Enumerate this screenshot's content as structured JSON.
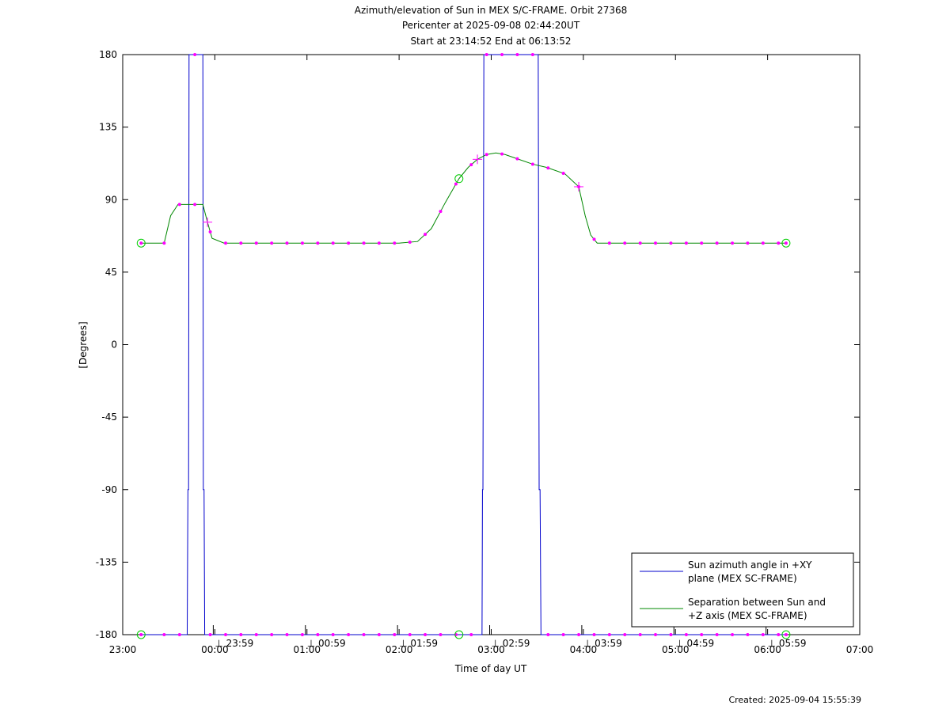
{
  "chart_data": {
    "type": "line",
    "title": [
      "Azimuth/elevation of Sun in MEX S/C-FRAME.  Orbit 27368",
      "Pericenter at 2025-09-08 02:44:20UT",
      "Start at 23:14:52 End at 06:13:52"
    ],
    "xlabel": "Time of day UT",
    "ylabel": "[Degrees]",
    "xlim": [
      0,
      8
    ],
    "ylim": [
      -180,
      180
    ],
    "x_ticks": [
      {
        "x": 0,
        "label": "23:00"
      },
      {
        "x": 1,
        "label": "00:00"
      },
      {
        "x": 2,
        "label": "01:00"
      },
      {
        "x": 3,
        "label": "02:00"
      },
      {
        "x": 4,
        "label": "03:00"
      },
      {
        "x": 5,
        "label": "04:00"
      },
      {
        "x": 6,
        "label": "05:00"
      },
      {
        "x": 7,
        "label": "06:00"
      },
      {
        "x": 8,
        "label": "07:00"
      }
    ],
    "y_ticks": [
      180,
      135,
      90,
      45,
      0,
      -45,
      -90,
      -135,
      -180
    ],
    "minor_labels": [
      {
        "x": 0.983,
        "label": "23:59"
      },
      {
        "x": 1.983,
        "label": "00:59"
      },
      {
        "x": 2.983,
        "label": "01:59"
      },
      {
        "x": 3.983,
        "label": "02:59"
      },
      {
        "x": 4.983,
        "label": "03:59"
      },
      {
        "x": 5.983,
        "label": "04:59"
      },
      {
        "x": 6.983,
        "label": "05:59"
      }
    ],
    "legend": {
      "position": "bottom-right",
      "entries": [
        {
          "line1": "Sun azimuth angle in +XY",
          "line2": "plane (MEX SC-FRAME)",
          "color": "#0000cc"
        },
        {
          "line1": "Separation between Sun and",
          "line2": "+Z axis (MEX SC-FRAME)",
          "color": "#008800"
        }
      ]
    },
    "series": [
      {
        "name": "Sun azimuth angle in +XY plane (MEX SC-FRAME)",
        "color": "#0000cc",
        "x": [
          0.2,
          0.7,
          0.708,
          0.715,
          0.72,
          0.73,
          0.86,
          0.87,
          0.875,
          0.883,
          0.89,
          0.9,
          1.0,
          3.9,
          3.905,
          3.91,
          3.92,
          3.93,
          4.5,
          4.51,
          4.52,
          4.53,
          4.54,
          7.2
        ],
        "values": [
          -180,
          -180,
          -90,
          -90,
          180,
          180,
          180,
          180,
          -90,
          -90,
          -180,
          -180,
          -180,
          -180,
          -90,
          -90,
          180,
          180,
          180,
          180,
          -90,
          -90,
          -180,
          -180
        ]
      },
      {
        "name": "Separation between Sun and +Z axis (MEX SC-FRAME)",
        "color": "#008800",
        "x": [
          0.2,
          0.45,
          0.52,
          0.6,
          0.87,
          0.92,
          0.97,
          1.1,
          2.0,
          3.0,
          3.2,
          3.35,
          3.5,
          3.65,
          3.75,
          3.85,
          3.95,
          4.05,
          4.15,
          4.3,
          4.45,
          4.6,
          4.8,
          4.95,
          5.02,
          5.08,
          5.15,
          5.3,
          6.0,
          7.2
        ],
        "values": [
          63,
          63,
          80,
          87,
          87,
          76,
          66,
          63,
          63,
          63,
          64,
          72,
          88,
          103,
          110,
          115,
          118,
          119,
          118,
          115,
          112,
          110,
          106,
          98,
          80,
          68,
          63,
          63,
          63,
          63
        ]
      }
    ],
    "markers_x": [
      0.2,
      0.45,
      0.617,
      0.783,
      0.95,
      1.117,
      1.283,
      1.45,
      1.617,
      1.783,
      1.95,
      2.117,
      2.283,
      2.45,
      2.617,
      2.783,
      2.95,
      3.117,
      3.283,
      3.45,
      3.617,
      3.783,
      3.95,
      4.117,
      4.283,
      4.45,
      4.617,
      4.783,
      4.95,
      5.117,
      5.283,
      5.45,
      5.617,
      5.783,
      5.95,
      6.117,
      6.283,
      6.45,
      6.617,
      6.783,
      6.95,
      7.117,
      7.2
    ],
    "circle_marker_x": [
      0.2,
      3.65,
      7.2
    ],
    "cross_marker_x": [
      0.92,
      3.85,
      4.95
    ]
  },
  "footer": "Created: 2025-09-04 15:55:39"
}
